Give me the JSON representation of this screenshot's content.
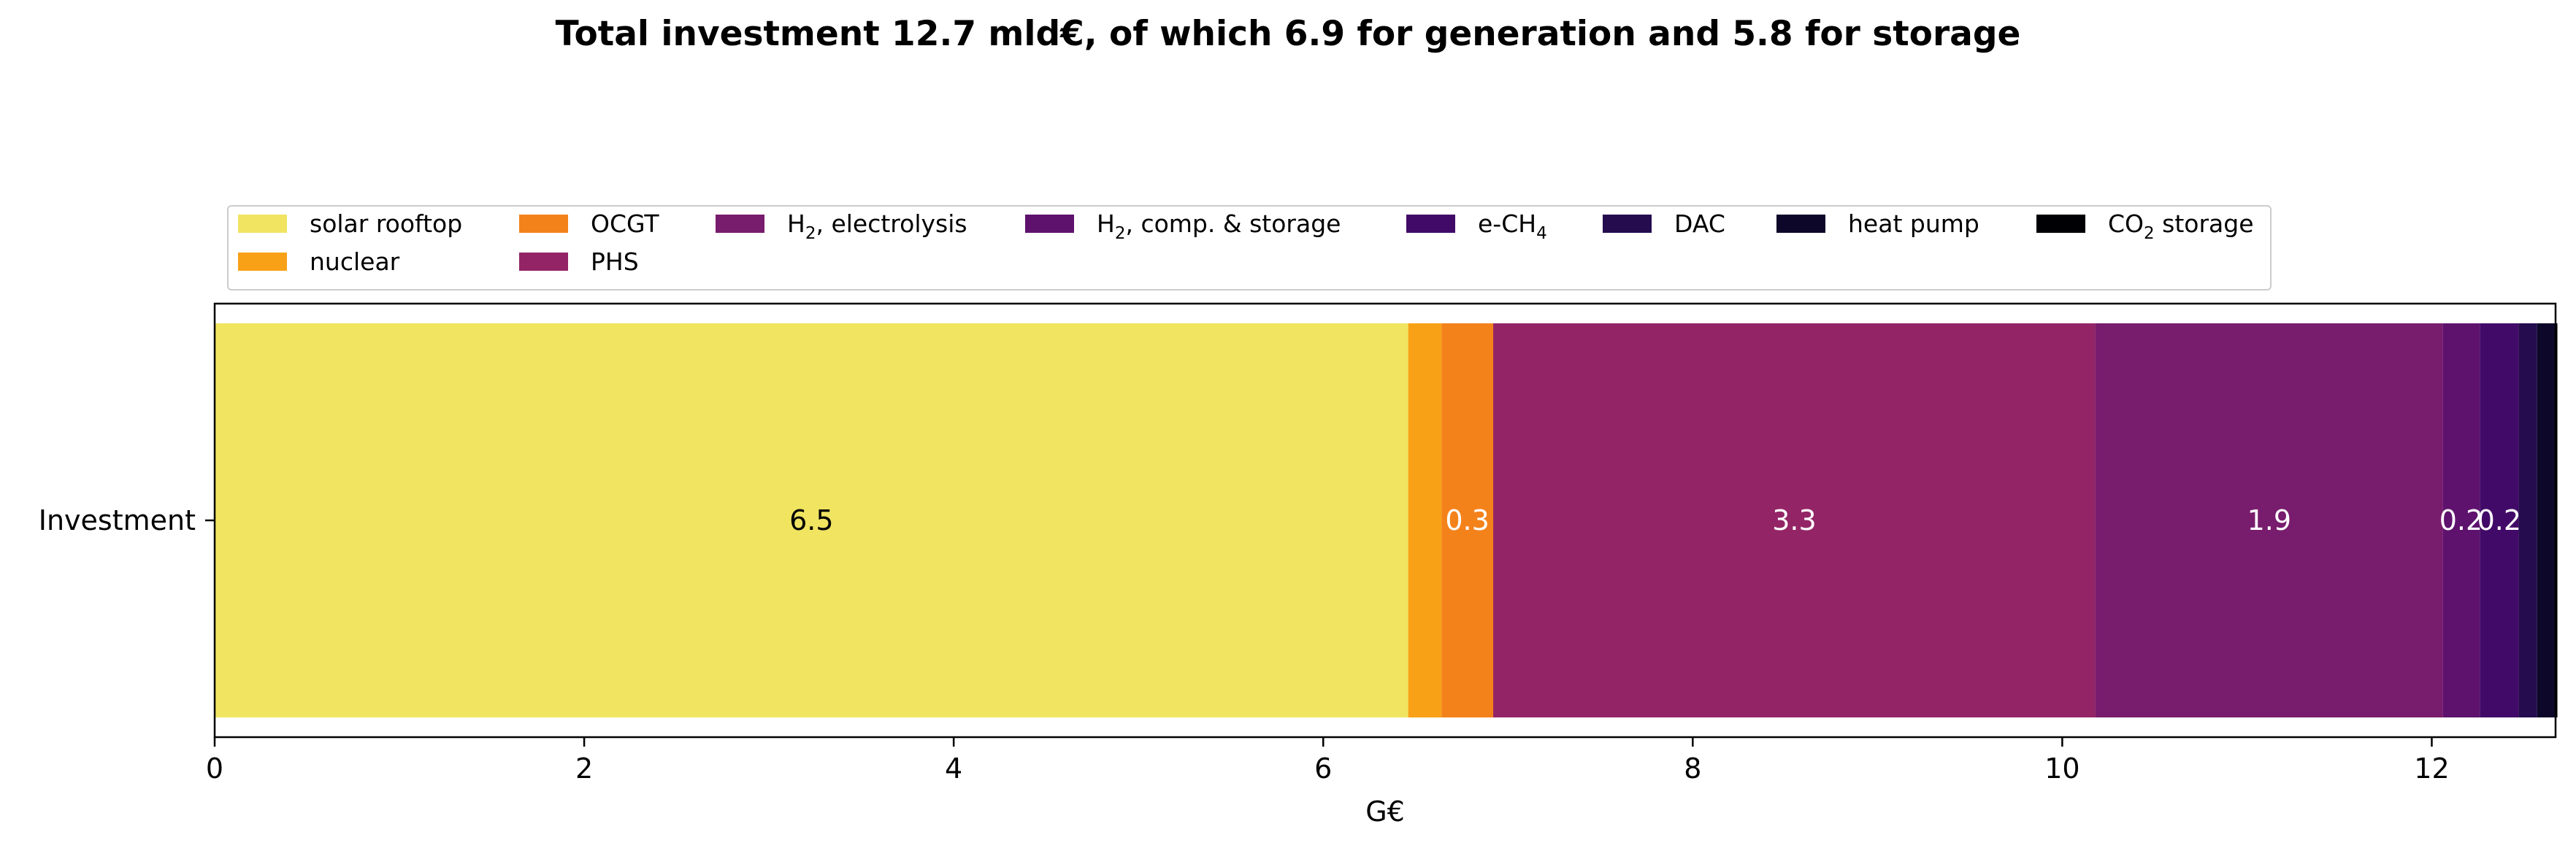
{
  "chart_data": {
    "type": "bar",
    "orientation": "horizontal",
    "stacked": true,
    "title": "Total investment 12.7 mld€, of which 6.9 for generation and 5.8 for storage",
    "xlabel": "G€",
    "ylabel": "",
    "categories": [
      "Investment"
    ],
    "xlim": [
      0,
      12.67
    ],
    "xticks": [
      0,
      2,
      4,
      6,
      8,
      10,
      12
    ],
    "grid": false,
    "legend": {
      "position": "top",
      "columns": 8
    },
    "series": [
      {
        "name": "solar rooftop",
        "name_main": "solar rooftop",
        "name_sub": "",
        "name_tail": "",
        "values": [
          6.46
        ],
        "color": "#f0e461",
        "label": "6.5",
        "label_color": "#000000"
      },
      {
        "name": "nuclear",
        "name_main": "nuclear",
        "name_sub": "",
        "name_tail": "",
        "values": [
          0.18
        ],
        "color": "#f8a116",
        "label": "",
        "label_color": "#ffffff"
      },
      {
        "name": "OCGT",
        "name_main": "OCGT",
        "name_sub": "",
        "name_tail": "",
        "values": [
          0.28
        ],
        "color": "#f4821b",
        "label": "0.3",
        "label_color": "#ffffff"
      },
      {
        "name": "PHS",
        "name_main": "PHS",
        "name_sub": "",
        "name_tail": "",
        "values": [
          3.26
        ],
        "color": "#932567",
        "label": "3.3",
        "label_color": "#ffffff"
      },
      {
        "name": "H2, electrolysis",
        "name_main": "H",
        "name_sub": "2",
        "name_tail": ", electrolysis",
        "values": [
          1.88
        ],
        "color": "#781c6d",
        "label": "1.9",
        "label_color": "#ffffff"
      },
      {
        "name": "H2, comp. & storage",
        "name_main": "H",
        "name_sub": "2",
        "name_tail": ", comp. & storage",
        "values": [
          0.2
        ],
        "color": "#5e126e",
        "label": "0.2",
        "label_color": "#ffffff"
      },
      {
        "name": "e-CH4",
        "name_main": "e-CH",
        "name_sub": "4",
        "name_tail": "",
        "values": [
          0.21
        ],
        "color": "#420a68",
        "label": "0.2",
        "label_color": "#ffffff"
      },
      {
        "name": "DAC",
        "name_main": "DAC",
        "name_sub": "",
        "name_tail": "",
        "values": [
          0.1
        ],
        "color": "#240c4f",
        "label": "",
        "label_color": "#ffffff"
      },
      {
        "name": "heat pump",
        "name_main": "heat pump",
        "name_sub": "",
        "name_tail": "",
        "values": [
          0.1
        ],
        "color": "#0d0829",
        "label": "",
        "label_color": "#ffffff"
      },
      {
        "name": "CO2 storage",
        "name_main": "CO",
        "name_sub": "2",
        "name_tail": " storage",
        "values": [
          0.01
        ],
        "color": "#000004",
        "label": "",
        "label_color": "#ffffff"
      }
    ]
  }
}
